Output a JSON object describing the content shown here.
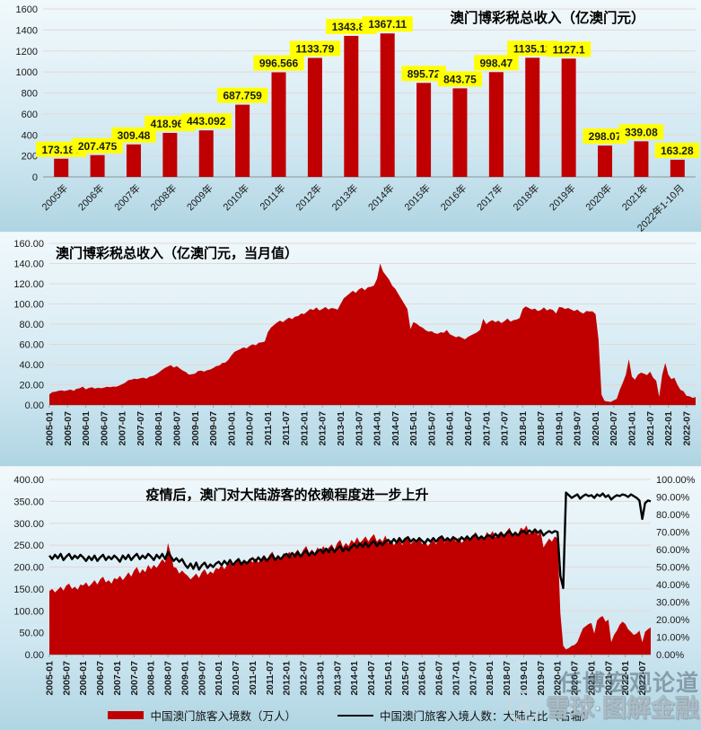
{
  "page": {
    "watermarks": {
      "renbo": "任博宏观论道",
      "xueqiu": "雪球·图解金融",
      "xueqiu_logo": "❅"
    }
  },
  "colors": {
    "series_red": "#C00000",
    "line_black": "#000000",
    "value_label_bg": "#FFFF00",
    "gridline": "#e3d7d6",
    "axis": "#95a4ac"
  },
  "chart_data": [
    {
      "type": "bar",
      "title": "澳门博彩税总收入（亿澳门元）",
      "categories": [
        "2005年",
        "2006年",
        "2007年",
        "2008年",
        "2009年",
        "2010年",
        "2011年",
        "2012年",
        "2013年",
        "2014年",
        "2015年",
        "2016年",
        "2017年",
        "2018年",
        "2019年",
        "2020年",
        "2021年",
        "2022年1-10月"
      ],
      "values": [
        173.187,
        207.475,
        309.48,
        418.965,
        443.092,
        687.759,
        996.566,
        1133.79,
        1343.81,
        1367.11,
        895.72,
        843.75,
        998.47,
        1135.13,
        1127.1,
        298.07,
        339.08,
        163.28
      ],
      "value_labels": [
        "173.187",
        "207.475",
        "309.48",
        "418.965",
        "443.092",
        "687.759",
        "996.566",
        "1133.79",
        "1343.81",
        "1367.11",
        "895.72",
        "843.75",
        "998.47",
        "1135.13",
        "1127.1",
        "298.07",
        "339.08",
        "163.28"
      ],
      "ylim": [
        0,
        1600
      ],
      "y_tick_labels": [
        "1600",
        "1400",
        "1200",
        "1000",
        "800",
        "600",
        "400",
        "200",
        "0"
      ],
      "grid": true,
      "bar_color": "#C00000"
    },
    {
      "type": "area",
      "title": "澳门博彩税总收入（亿澳门元，当月值）",
      "x_months_start": "2005-01",
      "x_months_end": "2022-10",
      "frequency": "monthly",
      "ylim": [
        0,
        160
      ],
      "y_tick_labels": [
        "160.00",
        "140.00",
        "120.00",
        "100.00",
        "80.00",
        "60.00",
        "40.00",
        "20.00",
        "0.00"
      ],
      "x_tick_labels": [
        "2005-01",
        "2005-07",
        "2006-01",
        "2006-07",
        "2007-01",
        "2007-07",
        "2008-01",
        "2008-07",
        "2009-01",
        "2009-07",
        "2010-01",
        "2010-07",
        "2011-01",
        "2011-07",
        "2012-01",
        "2012-07",
        "2013-01",
        "2013-07",
        "2014-01",
        "2014-07",
        "2015-01",
        "2015-07",
        "2016-01",
        "2016-07",
        "2017-01",
        "2017-07",
        "2018-01",
        "2018-07",
        "2019-01",
        "2019-07",
        "2020-01",
        "2020-07",
        "2021-01",
        "2021-07",
        "2022-01",
        "2022-07"
      ],
      "grid": true,
      "area_color": "#C00000",
      "values": [
        10.5,
        12.8,
        13.2,
        14.0,
        14.5,
        13.8,
        14.6,
        15.2,
        14.0,
        16.0,
        16.5,
        18.1,
        15.5,
        16.8,
        17.5,
        16.2,
        17.0,
        16.5,
        17.2,
        18.0,
        17.5,
        18.2,
        18.0,
        19.1,
        20.5,
        22.0,
        24.5,
        25.0,
        26.0,
        25.5,
        26.5,
        27.0,
        26.0,
        28.0,
        28.5,
        30.0,
        32.0,
        34.5,
        36.5,
        38.0,
        39.5,
        37.0,
        38.5,
        36.0,
        34.0,
        32.5,
        30.0,
        30.5,
        31.0,
        33.5,
        34.0,
        33.0,
        34.5,
        35.0,
        36.5,
        38.5,
        39.0,
        41.5,
        42.0,
        44.6,
        49.0,
        52.5,
        54.0,
        55.5,
        57.0,
        56.0,
        58.5,
        60.0,
        59.0,
        61.5,
        62.0,
        62.8,
        72.0,
        76.5,
        79.0,
        81.5,
        83.5,
        82.0,
        84.5,
        86.5,
        85.0,
        87.5,
        88.0,
        90.6,
        90.0,
        92.5,
        95.0,
        94.0,
        96.5,
        93.5,
        95.0,
        97.0,
        94.5,
        96.0,
        95.5,
        94.3,
        100.0,
        105.5,
        108.0,
        110.5,
        113.0,
        111.0,
        114.5,
        116.0,
        113.5,
        116.5,
        117.0,
        118.3,
        125.0,
        140.0,
        132.0,
        128.0,
        124.0,
        118.0,
        115.0,
        110.0,
        105.0,
        100.0,
        95.0,
        75.1,
        82.0,
        80.5,
        78.0,
        76.5,
        74.0,
        72.5,
        73.0,
        71.0,
        70.5,
        72.0,
        71.5,
        74.2,
        70.0,
        68.5,
        67.0,
        68.0,
        66.5,
        65.0,
        67.5,
        69.0,
        70.5,
        72.0,
        74.5,
        85.3,
        80.0,
        82.5,
        84.0,
        82.0,
        83.5,
        81.0,
        83.0,
        85.5,
        82.5,
        84.0,
        84.5,
        86.0,
        95.0,
        97.5,
        96.0,
        94.5,
        95.5,
        93.0,
        94.0,
        96.5,
        93.5,
        95.0,
        94.0,
        90.6,
        97.0,
        96.5,
        95.0,
        96.0,
        94.5,
        93.0,
        94.5,
        92.0,
        90.5,
        93.0,
        92.5,
        92.6,
        90.0,
        65.0,
        10.0,
        4.0,
        3.5,
        3.0,
        4.5,
        6.0,
        15.0,
        22.0,
        30.0,
        45.3,
        28.0,
        25.0,
        30.0,
        32.0,
        31.0,
        29.5,
        33.0,
        27.0,
        24.0,
        8.0,
        30.0,
        41.6,
        30.0,
        25.5,
        27.0,
        20.0,
        15.0,
        13.5,
        9.0,
        8.5,
        7.0,
        7.8
      ]
    },
    {
      "type": "combo-area-line",
      "title": "疫情后，澳门对大陆游客的依赖程度进一步上升",
      "x_months_start": "2005-01",
      "x_months_end": "2022-10",
      "frequency": "monthly",
      "ylim_left": [
        0,
        400
      ],
      "ylim_right_percent": [
        0,
        100
      ],
      "y_tick_labels_left": [
        "400.00",
        "350.00",
        "300.00",
        "250.00",
        "200.00",
        "150.00",
        "100.00",
        "50.00",
        "0.00"
      ],
      "y_tick_labels_right": [
        "100.00%",
        "90.00%",
        "80.00%",
        "70.00%",
        "60.00%",
        "50.00%",
        "40.00%",
        "30.00%",
        "20.00%",
        "10.00%",
        "0.00%"
      ],
      "x_tick_labels": [
        "2005-01",
        "2005-07",
        "2006-01",
        "2006-07",
        "2007-01",
        "2007-07",
        "2008-01",
        "2008-07",
        "2009-01",
        "2009-07",
        "2010-01",
        "2010-07",
        "2011-01",
        "2011-07",
        "2012-01",
        "2012-07",
        "2013-01",
        "2013-07",
        "2014-01",
        "2014-07",
        "2015-01",
        "2015-07",
        "2016-01",
        "2016-07",
        "2017-01",
        "2017-07",
        "2018-01",
        "2018-07",
        "2019-01",
        "2019-07",
        "2020-01",
        "2020-07",
        "2021-01",
        "2021-07",
        "2022-01",
        "2022-07"
      ],
      "grid": true,
      "legend": [
        {
          "label": "中国澳门旅客入境数（万人）",
          "swatch": "red-area"
        },
        {
          "label": "中国澳门旅客入境人数：大陆占比（右轴）",
          "swatch": "black-line"
        }
      ],
      "series": [
        {
          "name": "中国澳门旅客入境数（万人）",
          "axis": "left",
          "style": "area",
          "color": "#C00000",
          "values": [
            145,
            150,
            142,
            148,
            155,
            146,
            158,
            162,
            150,
            155,
            148,
            160,
            158,
            165,
            155,
            162,
            170,
            160,
            172,
            178,
            165,
            170,
            162,
            175,
            172,
            180,
            170,
            178,
            188,
            178,
            192,
            200,
            185,
            195,
            188,
            205,
            195,
            205,
            198,
            208,
            218,
            210,
            255,
            230,
            200,
            198,
            185,
            192,
            185,
            180,
            172,
            178,
            185,
            175,
            188,
            195,
            182,
            190,
            185,
            198,
            195,
            205,
            195,
            205,
            210,
            200,
            210,
            218,
            205,
            215,
            208,
            220,
            210,
            220,
            210,
            218,
            225,
            215,
            228,
            235,
            220,
            228,
            220,
            232,
            225,
            235,
            225,
            232,
            240,
            228,
            240,
            248,
            232,
            240,
            232,
            245,
            235,
            248,
            238,
            245,
            252,
            240,
            255,
            262,
            245,
            255,
            248,
            262,
            255,
            268,
            255,
            262,
            270,
            258,
            268,
            275,
            258,
            265,
            258,
            272,
            255,
            262,
            250,
            258,
            262,
            250,
            262,
            270,
            252,
            260,
            255,
            268,
            252,
            260,
            248,
            255,
            262,
            252,
            265,
            272,
            255,
            265,
            258,
            272,
            258,
            268,
            255,
            262,
            270,
            260,
            272,
            280,
            262,
            272,
            265,
            280,
            272,
            282,
            268,
            275,
            282,
            270,
            282,
            290,
            272,
            282,
            275,
            290,
            285,
            295,
            275,
            282,
            288,
            272,
            282,
            245,
            255,
            265,
            258,
            270,
            265,
            95,
            20,
            12,
            15,
            20,
            22,
            28,
            45,
            60,
            65,
            70,
            72,
            48,
            78,
            85,
            88,
            75,
            80,
            28,
            45,
            55,
            68,
            75,
            70,
            58,
            52,
            45,
            48,
            55,
            28,
            52,
            58,
            62
          ]
        },
        {
          "name": "中国澳门旅客入境人数：大陆占比（右轴）",
          "axis": "right",
          "style": "line",
          "color": "#000000",
          "values": [
            56.5,
            54.5,
            57.0,
            55.0,
            57.5,
            54.0,
            56.0,
            57.5,
            54.5,
            56.5,
            55.0,
            57.0,
            55.5,
            53.5,
            56.0,
            54.0,
            56.5,
            53.5,
            55.5,
            57.0,
            54.0,
            56.0,
            54.5,
            56.5,
            55.0,
            53.0,
            56.5,
            54.5,
            57.0,
            54.0,
            56.0,
            57.5,
            54.5,
            56.5,
            55.0,
            57.5,
            56.0,
            54.0,
            57.0,
            55.0,
            57.5,
            54.5,
            58.5,
            56.0,
            53.5,
            55.0,
            53.0,
            54.5,
            51.5,
            49.5,
            52.0,
            49.0,
            52.5,
            48.5,
            51.0,
            52.5,
            49.5,
            51.5,
            50.0,
            52.0,
            53.0,
            51.0,
            53.5,
            51.5,
            54.0,
            51.0,
            53.0,
            54.5,
            51.5,
            53.5,
            52.0,
            54.0,
            55.0,
            53.0,
            55.5,
            53.5,
            56.0,
            53.5,
            55.5,
            57.0,
            54.0,
            56.0,
            54.5,
            56.5,
            57.5,
            55.5,
            58.0,
            56.0,
            58.5,
            56.0,
            58.0,
            59.5,
            56.5,
            58.5,
            57.0,
            59.0,
            60.0,
            58.0,
            60.5,
            58.5,
            61.0,
            58.5,
            60.5,
            62.0,
            59.0,
            61.0,
            59.5,
            61.5,
            63.0,
            61.0,
            63.5,
            61.5,
            64.0,
            61.5,
            63.5,
            65.0,
            62.0,
            64.0,
            62.5,
            64.5,
            65.5,
            63.5,
            66.0,
            64.0,
            66.5,
            64.0,
            66.0,
            67.0,
            64.5,
            66.0,
            64.5,
            66.5,
            65.0,
            63.5,
            66.0,
            64.5,
            66.5,
            64.5,
            66.5,
            67.5,
            65.0,
            66.5,
            65.0,
            67.0,
            66.0,
            64.5,
            67.0,
            65.5,
            67.5,
            65.5,
            67.5,
            68.5,
            66.0,
            67.5,
            66.0,
            68.0,
            68.0,
            66.5,
            69.0,
            67.0,
            69.5,
            67.5,
            69.5,
            70.5,
            68.0,
            69.5,
            68.0,
            70.0,
            70.5,
            69.0,
            71.0,
            69.5,
            71.5,
            69.5,
            71.0,
            68.0,
            69.5,
            70.5,
            69.5,
            70.5,
            70.0,
            45.0,
            38.0,
            92.5,
            91.0,
            89.5,
            90.5,
            91.5,
            89.0,
            90.5,
            91.5,
            90.5,
            91.0,
            89.5,
            91.5,
            90.5,
            92.0,
            90.0,
            91.0,
            88.5,
            90.0,
            91.0,
            90.5,
            91.5,
            91.0,
            90.0,
            91.5,
            90.5,
            89.5,
            88.0,
            77.5,
            86.5,
            88.0,
            87.5
          ]
        }
      ]
    }
  ]
}
